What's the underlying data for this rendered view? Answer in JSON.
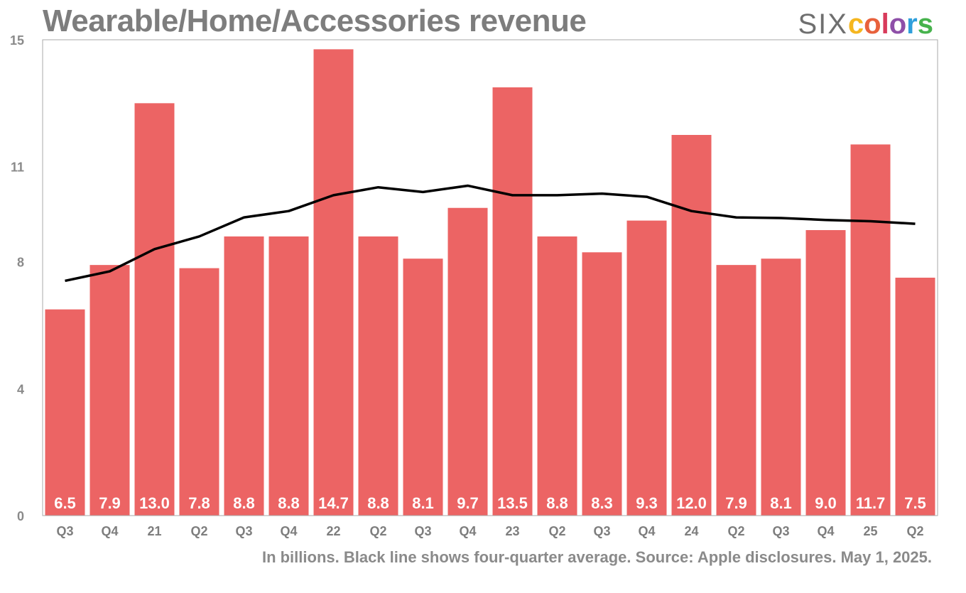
{
  "title": "Wearable/Home/Accessories revenue",
  "logo": {
    "prefix": "SIX",
    "word": "colors",
    "letter_colors": [
      "#f5b61f",
      "#e8613c",
      "#d83a5b",
      "#8e4fa8",
      "#2f9fdc",
      "#47b34d"
    ]
  },
  "footnote": "In billions. Black line shows four-quarter average. Source: Apple disclosures. May 1, 2025.",
  "colors": {
    "bar": "#ec6464",
    "line": "#000000",
    "axis": "#aaaaaa"
  },
  "chart_data": {
    "type": "bar",
    "categories": [
      "Q3",
      "Q4",
      "21",
      "Q2",
      "Q3",
      "Q4",
      "22",
      "Q2",
      "Q3",
      "Q4",
      "23",
      "Q2",
      "Q3",
      "Q4",
      "24",
      "Q2",
      "Q3",
      "Q4",
      "25",
      "Q2"
    ],
    "series": [
      {
        "values": [
          6.5,
          7.9,
          13.0,
          7.8,
          8.8,
          8.8,
          14.7,
          8.8,
          8.1,
          9.7,
          13.5,
          8.8,
          8.3,
          9.3,
          12.0,
          7.9,
          8.1,
          9.0,
          11.7,
          7.5
        ]
      }
    ],
    "line": [
      7.4,
      7.7,
      8.4,
      8.8,
      9.4,
      9.6,
      10.1,
      10.35,
      10.2,
      10.4,
      10.1,
      10.1,
      10.15,
      10.05,
      9.6,
      9.4,
      9.38,
      9.32,
      9.28,
      9.2
    ],
    "data_labels": [
      "6.5",
      "7.9",
      "13.0",
      "7.8",
      "8.8",
      "8.8",
      "14.7",
      "8.8",
      "8.1",
      "9.7",
      "13.5",
      "8.8",
      "8.3",
      "9.3",
      "12.0",
      "7.9",
      "8.1",
      "9.0",
      "11.7",
      "7.5"
    ],
    "yticks": [
      0,
      4,
      8,
      11,
      15
    ],
    "ytick_labels": [
      "0",
      "4",
      "8",
      "11",
      "15"
    ],
    "ylim": [
      0,
      15
    ],
    "grid": false,
    "legend": "none"
  }
}
